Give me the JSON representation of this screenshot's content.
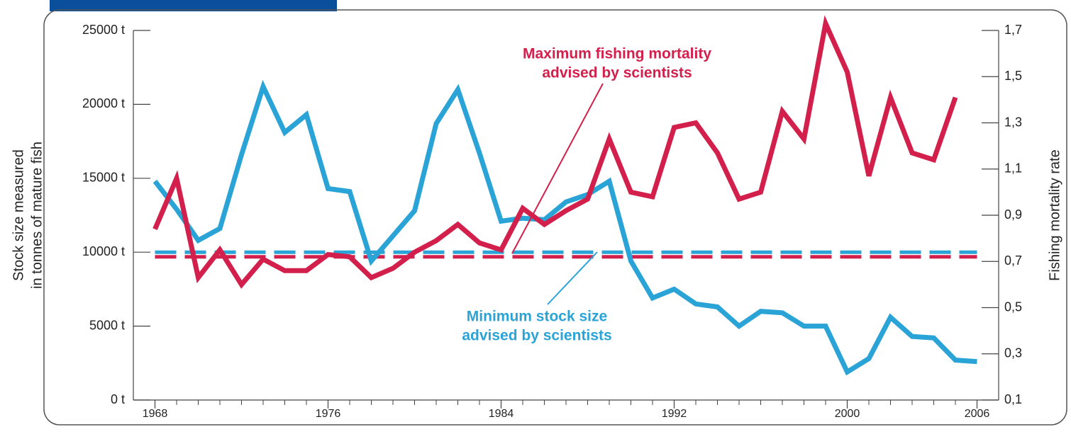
{
  "chart_data": {
    "type": "line",
    "x": [
      1968,
      1969,
      1970,
      1971,
      1972,
      1973,
      1974,
      1975,
      1976,
      1977,
      1978,
      1979,
      1980,
      1981,
      1982,
      1983,
      1984,
      1985,
      1986,
      1987,
      1988,
      1989,
      1990,
      1991,
      1992,
      1993,
      1994,
      1995,
      1996,
      1997,
      1998,
      1999,
      2000,
      2001,
      2002,
      2003,
      2004,
      2005,
      2006
    ],
    "series": [
      {
        "color": "#2aa3d6",
        "axis": "y",
        "values": [
          14800,
          12900,
          10800,
          11600,
          16600,
          21200,
          18100,
          19300,
          14300,
          14100,
          9400,
          11100,
          12800,
          18700,
          21000,
          16700,
          12100,
          12300,
          12200,
          13400,
          13900,
          14800,
          9400,
          6900,
          7500,
          6500,
          6300,
          5000,
          6000,
          5900,
          5000,
          5000,
          1900,
          2800,
          5600,
          4300,
          4200,
          2700,
          2600
        ]
      },
      {
        "color": "#d31f4b",
        "axis": "y2",
        "values": [
          0.84,
          1.06,
          0.63,
          0.75,
          0.6,
          0.71,
          0.66,
          0.66,
          0.73,
          0.72,
          0.63,
          0.67,
          0.74,
          0.79,
          0.86,
          0.78,
          0.75,
          0.93,
          0.86,
          0.92,
          0.97,
          1.23,
          1.0,
          0.98,
          1.28,
          1.3,
          1.17,
          0.97,
          1.0,
          1.35,
          1.23,
          1.73,
          1.52,
          1.07,
          1.41,
          1.17,
          1.14,
          1.41,
          null
        ]
      }
    ],
    "thresholds": [
      {
        "value": 10000,
        "axis": "y",
        "color": "#2aa3d6"
      },
      {
        "value": 0.72,
        "axis": "y2",
        "color": "#d31f4b"
      }
    ],
    "annotations": [
      {
        "lines": [
          "Maximum fishing mortality",
          "advised by scientists"
        ],
        "color": "#d31f4b"
      },
      {
        "lines": [
          "Minimum stock size",
          "advised by scientists"
        ],
        "color": "#2aa3d6"
      }
    ],
    "ylabel": [
      "Stock size measured",
      "in tonnes of mature fish"
    ],
    "y2label": "Fishing mortality rate",
    "xlim": [
      1967,
      2007
    ],
    "xticks": [
      1968,
      1976,
      1984,
      1992,
      2000,
      2006
    ],
    "ylim": [
      0,
      25000
    ],
    "yticks": [
      {
        "value": 0,
        "label": "0 t"
      },
      {
        "value": 5000,
        "label": "5000 t"
      },
      {
        "value": 10000,
        "label": "10000 t"
      },
      {
        "value": 15000,
        "label": "15000 t"
      },
      {
        "value": 20000,
        "label": "20000 t"
      },
      {
        "value": 25000,
        "label": "25000 t"
      }
    ],
    "y2lim": [
      0.1,
      1.7
    ],
    "y2ticks": [
      {
        "value": 0.1,
        "label": "0,1"
      },
      {
        "value": 0.3,
        "label": "0,3"
      },
      {
        "value": 0.5,
        "label": "0,5"
      },
      {
        "value": 0.7,
        "label": "0,7"
      },
      {
        "value": 0.9,
        "label": "0,9"
      },
      {
        "value": 1.1,
        "label": "1,1"
      },
      {
        "value": 1.3,
        "label": "1,3"
      },
      {
        "value": 1.5,
        "label": "1,5"
      },
      {
        "value": 1.7,
        "label": "1,7"
      }
    ]
  }
}
